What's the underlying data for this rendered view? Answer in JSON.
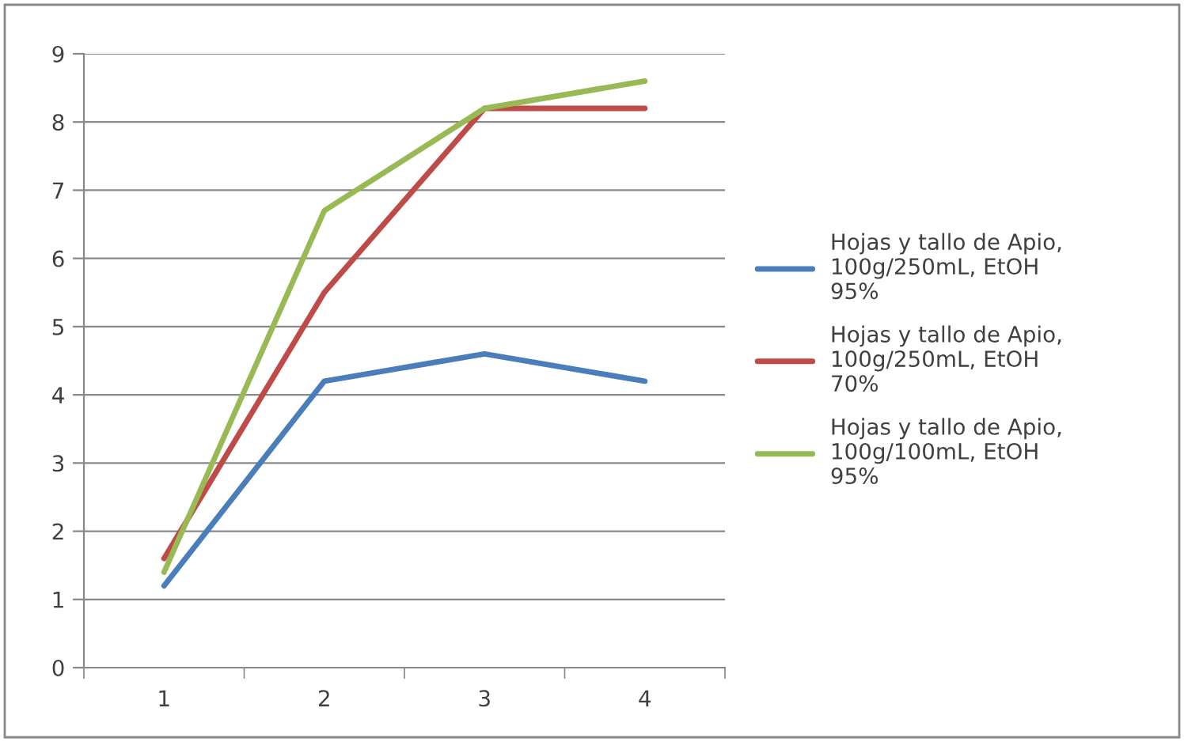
{
  "chart_data": {
    "type": "line",
    "categories": [
      "1",
      "2",
      "3",
      "4"
    ],
    "series": [
      {
        "name": "Hojas y tallo de Apio,\n100g/250mL, EtOH\n95%",
        "color": "#4a7ebb",
        "values": [
          1.2,
          4.2,
          4.6,
          4.2
        ]
      },
      {
        "name": "Hojas y tallo de Apio,\n100g/250mL, EtOH\n70%",
        "color": "#be4b48",
        "values": [
          1.6,
          5.5,
          8.2,
          8.2
        ]
      },
      {
        "name": "Hojas y tallo de Apio,\n100g/100mL, EtOH\n95%",
        "color": "#98b954",
        "values": [
          1.4,
          6.7,
          8.2,
          8.6
        ]
      }
    ],
    "ylim": [
      0,
      9
    ],
    "yticks": [
      0,
      1,
      2,
      3,
      4,
      5,
      6,
      7,
      8,
      9
    ],
    "grid": "y",
    "legend": "right",
    "marker": "none",
    "line_style": "solid"
  }
}
